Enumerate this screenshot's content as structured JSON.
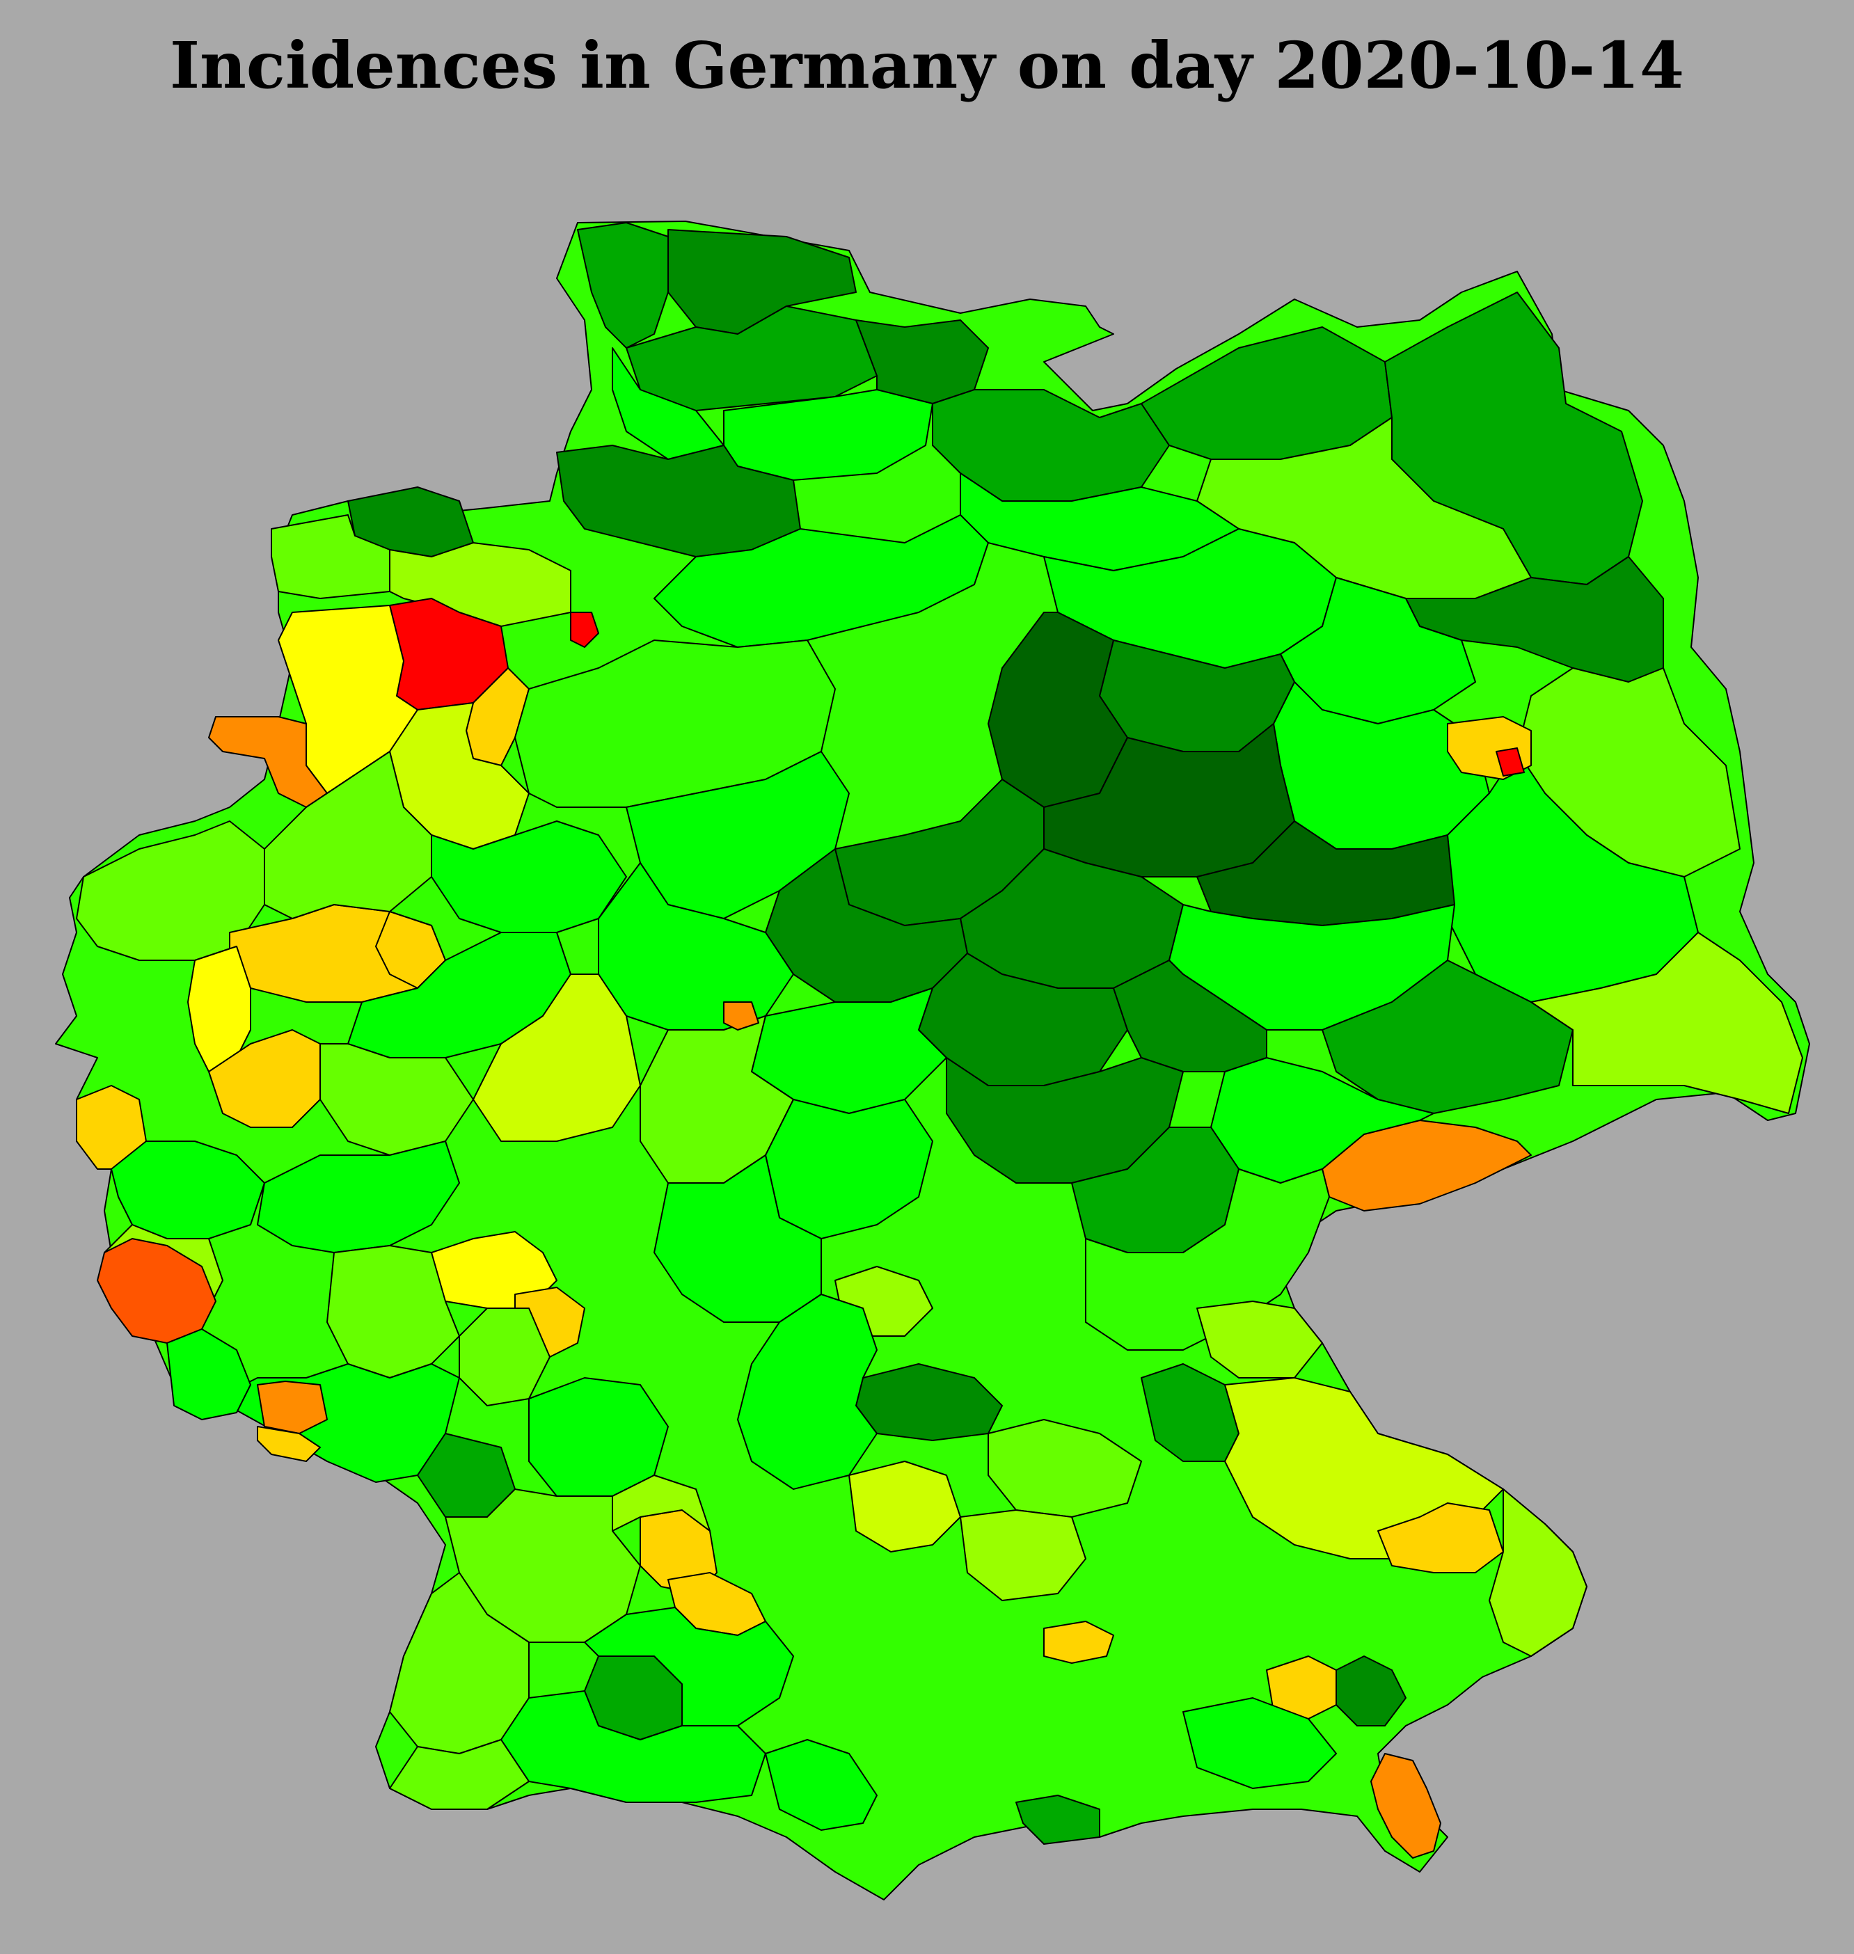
{
  "title": "Incidences in Germany on day 2020-10-14",
  "colors": {
    "background": "#a9a9a9",
    "border": "#000000",
    "scale": {
      "very_dark_green": "#006400",
      "dark_green": "#008c00",
      "mid_dark_green": "#00aa00",
      "green": "#00c800",
      "bright_green": "#00ff00",
      "light_green": "#33ff00",
      "lime": "#66ff00",
      "yellow_green": "#99ff00",
      "green_yellow": "#ccff00",
      "yellow": "#ffff00",
      "gold": "#ffd400",
      "orange": "#ff8c00",
      "dark_orange": "#ff5500",
      "red": "#ff0000"
    }
  },
  "map": {
    "country": "Germany",
    "date": "2020-10-14",
    "districts": [
      {
        "id": "sh-nordfriesland",
        "color": "mid_dark_green"
      },
      {
        "id": "sh-schleswig-flensburg",
        "color": "dark_green"
      },
      {
        "id": "sh-rendsburg",
        "color": "mid_dark_green"
      },
      {
        "id": "sh-dithmarschen",
        "color": "bright_green"
      },
      {
        "id": "sh-ostholstein",
        "color": "dark_green"
      },
      {
        "id": "sh-pinneberg",
        "color": "bright_green"
      },
      {
        "id": "mv-nordwest",
        "color": "mid_dark_green"
      },
      {
        "id": "mv-rostock",
        "color": "mid_dark_green"
      },
      {
        "id": "mv-vorpommern",
        "color": "mid_dark_green"
      },
      {
        "id": "mv-mecklenburg-seen",
        "color": "lime"
      },
      {
        "id": "mv-ludwigslust",
        "color": "bright_green"
      },
      {
        "id": "ni-stade-cuxhaven",
        "color": "dark_green"
      },
      {
        "id": "ni-friesland",
        "color": "dark_green"
      },
      {
        "id": "ni-aurich",
        "color": "lime"
      },
      {
        "id": "ni-leer",
        "color": "yellow_green"
      },
      {
        "id": "ni-cloppenburg",
        "color": "red"
      },
      {
        "id": "ni-emsland",
        "color": "yellow"
      },
      {
        "id": "ni-grafschaft-bentheim",
        "color": "orange"
      },
      {
        "id": "ni-vechta",
        "color": "gold"
      },
      {
        "id": "ni-delmenhorst",
        "color": "red"
      },
      {
        "id": "ni-osnabrueck",
        "color": "green_yellow"
      },
      {
        "id": "ni-lueneburg-heide",
        "color": "bright_green"
      },
      {
        "id": "ni-hannover",
        "color": "light_green"
      },
      {
        "id": "ni-goettingen",
        "color": "bright_green"
      },
      {
        "id": "bb-prignitz",
        "color": "bright_green"
      },
      {
        "id": "bb-uckermark",
        "color": "dark_green"
      },
      {
        "id": "bb-havelland",
        "color": "bright_green"
      },
      {
        "id": "bb-potsdam-mittelmark",
        "color": "bright_green"
      },
      {
        "id": "bb-dahme-spreewald",
        "color": "lime"
      },
      {
        "id": "bb-oder-spree",
        "color": "bright_green"
      },
      {
        "id": "be-berlin",
        "color": "gold"
      },
      {
        "id": "be-berlin-neukoelln",
        "color": "red"
      },
      {
        "id": "st-altmark",
        "color": "dark_green"
      },
      {
        "id": "st-magdeburg-boerde",
        "color": "very_dark_green"
      },
      {
        "id": "st-anhalt",
        "color": "very_dark_green"
      },
      {
        "id": "st-harz",
        "color": "dark_green"
      },
      {
        "id": "st-saalekreis",
        "color": "dark_green"
      },
      {
        "id": "st-wittenberg",
        "color": "very_dark_green"
      },
      {
        "id": "sn-leipzig",
        "color": "bright_green"
      },
      {
        "id": "sn-dresden",
        "color": "mid_dark_green"
      },
      {
        "id": "sn-bautzen-goerlitz",
        "color": "yellow_green"
      },
      {
        "id": "sn-erzgebirge",
        "color": "orange"
      },
      {
        "id": "sn-vogtland",
        "color": "bright_green"
      },
      {
        "id": "th-nordhausen-eichsfeld",
        "color": "dark_green"
      },
      {
        "id": "th-erfurt-gotha",
        "color": "dark_green"
      },
      {
        "id": "th-saale-orla",
        "color": "dark_green"
      },
      {
        "id": "th-wartburgkreis",
        "color": "bright_green"
      },
      {
        "id": "nw-kleve-wesel",
        "color": "lime"
      },
      {
        "id": "nw-ruhr",
        "color": "gold"
      },
      {
        "id": "nw-duesseldorf",
        "color": "yellow"
      },
      {
        "id": "nw-koeln",
        "color": "gold"
      },
      {
        "id": "nw-aachen",
        "color": "gold"
      },
      {
        "id": "nw-muenster",
        "color": "lime"
      },
      {
        "id": "nw-bielefeld",
        "color": "bright_green"
      },
      {
        "id": "nw-hamm",
        "color": "gold"
      },
      {
        "id": "nw-sauerland",
        "color": "bright_green"
      },
      {
        "id": "nw-siegen",
        "color": "lime"
      },
      {
        "id": "he-kassel",
        "color": "bright_green"
      },
      {
        "id": "he-fulda",
        "color": "lime"
      },
      {
        "id": "he-giessen",
        "color": "green_yellow"
      },
      {
        "id": "he-frankfurt",
        "color": "yellow"
      },
      {
        "id": "he-offenbach",
        "color": "gold"
      },
      {
        "id": "he-darmstadt",
        "color": "lime"
      },
      {
        "id": "he-werra-meissner",
        "color": "orange"
      },
      {
        "id": "rp-eifel",
        "color": "bright_green"
      },
      {
        "id": "rp-trier",
        "color": "yellow_green"
      },
      {
        "id": "rp-koblenz",
        "color": "bright_green"
      },
      {
        "id": "rp-mainz",
        "color": "lime"
      },
      {
        "id": "rp-pfalz",
        "color": "bright_green"
      },
      {
        "id": "lu-luxembourg-border",
        "color": "dark_orange"
      },
      {
        "id": "sl-saarland",
        "color": "bright_green"
      },
      {
        "id": "sl-saarpfalz",
        "color": "orange"
      },
      {
        "id": "sl-saarbruecken",
        "color": "gold"
      },
      {
        "id": "bw-karlsruhe",
        "color": "mid_dark_green"
      },
      {
        "id": "bw-heilbronn",
        "color": "bright_green"
      },
      {
        "id": "bw-stuttgart",
        "color": "gold"
      },
      {
        "id": "bw-esslingen",
        "color": "gold"
      },
      {
        "id": "bw-ludwigsburg",
        "color": "yellow_green"
      },
      {
        "id": "bw-schwarzwald",
        "color": "lime"
      },
      {
        "id": "bw-ortenau",
        "color": "lime"
      },
      {
        "id": "bw-tuebingen",
        "color": "mid_dark_green"
      },
      {
        "id": "bw-alb",
        "color": "bright_green"
      },
      {
        "id": "bw-bodensee",
        "color": "bright_green"
      },
      {
        "id": "bw-freiburg",
        "color": "lime"
      },
      {
        "id": "by-unterfranken",
        "color": "bright_green"
      },
      {
        "id": "by-schweinfurt",
        "color": "yellow_green"
      },
      {
        "id": "by-wuerzburg",
        "color": "bright_green"
      },
      {
        "id": "by-oberfranken",
        "color": "dark_green"
      },
      {
        "id": "by-bayreuth",
        "color": "mid_dark_green"
      },
      {
        "id": "by-nuernberg",
        "color": "dark_green"
      },
      {
        "id": "by-ansbach",
        "color": "bright_green"
      },
      {
        "id": "by-oberpfalz",
        "color": "mid_dark_green"
      },
      {
        "id": "by-regensburg",
        "color": "light_green"
      },
      {
        "id": "by-cham",
        "color": "yellow_green"
      },
      {
        "id": "by-niederbayern",
        "color": "green_yellow"
      },
      {
        "id": "by-deggendorf",
        "color": "gold"
      },
      {
        "id": "by-passau",
        "color": "yellow_green"
      },
      {
        "id": "by-rottal-inn",
        "color": "dark_green"
      },
      {
        "id": "by-landshut",
        "color": "gold"
      },
      {
        "id": "by-augsburg",
        "color": "green_yellow"
      },
      {
        "id": "by-ingolstadt",
        "color": "lime"
      },
      {
        "id": "by-muenchen",
        "color": "gold"
      },
      {
        "id": "by-rosenheim",
        "color": "bright_green"
      },
      {
        "id": "by-berchtesgaden",
        "color": "orange"
      },
      {
        "id": "by-allgaeu",
        "color": "bright_green"
      },
      {
        "id": "by-garmisch",
        "color": "mid_dark_green"
      },
      {
        "id": "by-donau-ries",
        "color": "yellow_green"
      }
    ]
  }
}
